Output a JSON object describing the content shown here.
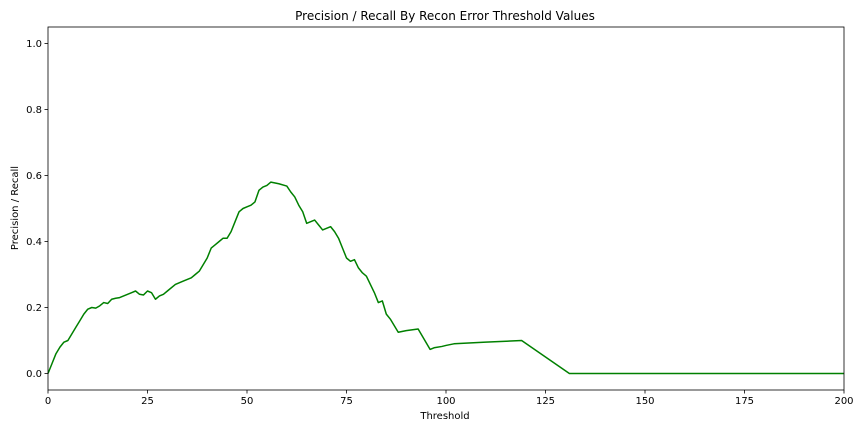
{
  "chart_data": {
    "type": "line",
    "title": "Precision / Recall  By Recon Error Threshold Values",
    "xlabel": "Threshold",
    "ylabel": "Precision / Recall",
    "xlim": [
      0,
      200
    ],
    "ylim": [
      -0.05,
      1.05
    ],
    "xticks": [
      0,
      25,
      50,
      75,
      100,
      125,
      150,
      175,
      200
    ],
    "yticks": [
      0.0,
      0.2,
      0.4,
      0.6,
      0.8,
      1.0
    ],
    "xtick_labels": [
      "0",
      "25",
      "50",
      "75",
      "100",
      "125",
      "150",
      "175",
      "200"
    ],
    "ytick_labels": [
      "0.0",
      "0.2",
      "0.4",
      "0.6",
      "0.8",
      "1.0"
    ],
    "grid": false,
    "series": [
      {
        "color": "#008000",
        "x": [
          0,
          1,
          2,
          3,
          4,
          5,
          6,
          7,
          8,
          9,
          10,
          11,
          12,
          13,
          14,
          15,
          16,
          17,
          18,
          19,
          20,
          21,
          22,
          23,
          24,
          25,
          26,
          27,
          28,
          29,
          30,
          32,
          34,
          36,
          37,
          38,
          39,
          40,
          41,
          42,
          43,
          44,
          45,
          46,
          47,
          48,
          49,
          50,
          51,
          52,
          53,
          54,
          55,
          56,
          58,
          60,
          61,
          62,
          63,
          64,
          65,
          66,
          67,
          68,
          69,
          70,
          71,
          72,
          73,
          74,
          75,
          76,
          77,
          78,
          79,
          80,
          81,
          82,
          83,
          84,
          85,
          86,
          88,
          90,
          93,
          96,
          97,
          99,
          100,
          102,
          110,
          119,
          131,
          200
        ],
        "y": [
          0.0,
          0.03,
          0.06,
          0.08,
          0.095,
          0.1,
          0.12,
          0.14,
          0.16,
          0.18,
          0.195,
          0.2,
          0.198,
          0.205,
          0.215,
          0.212,
          0.225,
          0.228,
          0.23,
          0.235,
          0.24,
          0.245,
          0.25,
          0.24,
          0.238,
          0.25,
          0.245,
          0.225,
          0.235,
          0.24,
          0.25,
          0.27,
          0.28,
          0.29,
          0.3,
          0.31,
          0.33,
          0.35,
          0.38,
          0.39,
          0.4,
          0.41,
          0.41,
          0.43,
          0.46,
          0.49,
          0.5,
          0.505,
          0.51,
          0.52,
          0.555,
          0.565,
          0.57,
          0.58,
          0.575,
          0.568,
          0.55,
          0.535,
          0.51,
          0.49,
          0.455,
          0.46,
          0.465,
          0.45,
          0.435,
          0.44,
          0.445,
          0.43,
          0.41,
          0.38,
          0.35,
          0.34,
          0.345,
          0.32,
          0.305,
          0.295,
          0.27,
          0.245,
          0.215,
          0.22,
          0.18,
          0.165,
          0.125,
          0.13,
          0.135,
          0.073,
          0.078,
          0.082,
          0.085,
          0.09,
          0.095,
          0.1,
          0.0,
          0.0
        ]
      }
    ]
  }
}
